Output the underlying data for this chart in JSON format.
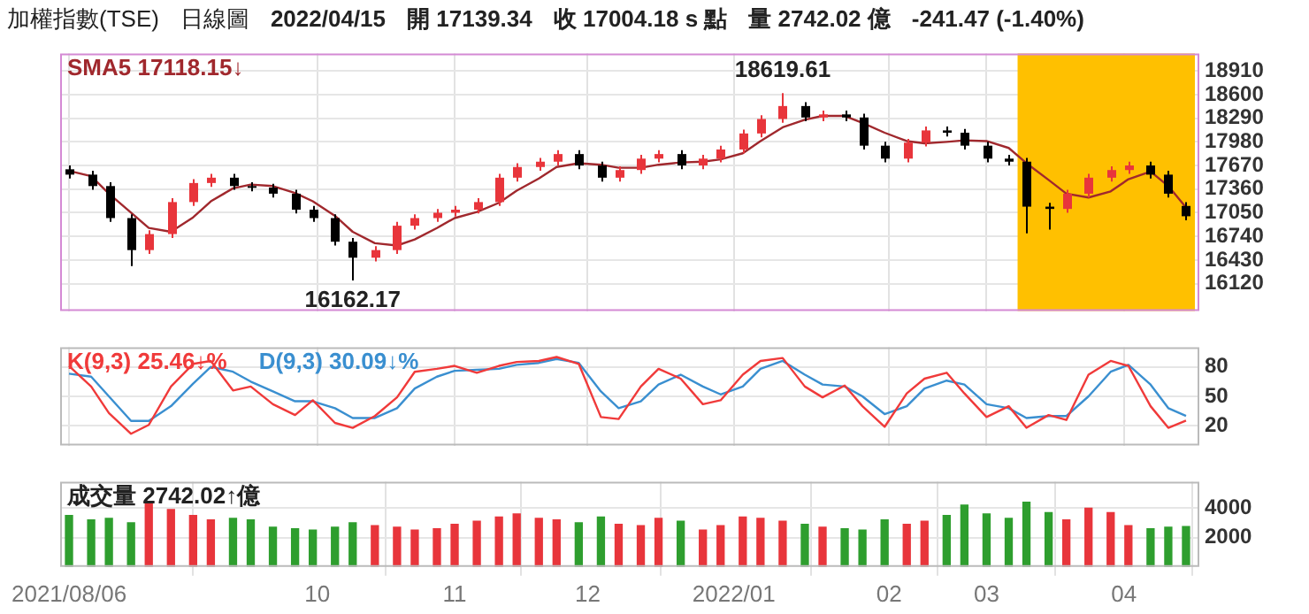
{
  "chart_data": [
    {
      "type": "candlestick",
      "title": "加權指數(TSE)",
      "subtitle": "日線圖",
      "annotations": [
        "2022/04/15",
        "開 17139.34",
        "收 17004.18 s 點",
        "量 2742.02 億",
        "-241.47 (-1.40%)",
        {
          "text": "18619.61",
          "x": "2022-01-14",
          "y": 18619.61
        },
        {
          "text": "16162.17",
          "x": "2021-10-09",
          "y": 16162.17
        }
      ],
      "x": [
        "2021-08-06",
        "2021-08-11",
        "2021-08-15",
        "2021-08-20",
        "2021-08-24",
        "2021-08-29",
        "2021-09-03",
        "2021-09-07",
        "2021-09-12",
        "2021-09-16",
        "2021-09-21",
        "2021-09-26",
        "2021-09-30",
        "2021-10-05",
        "2021-10-09",
        "2021-10-14",
        "2021-10-19",
        "2021-10-23",
        "2021-10-28",
        "2021-11-01",
        "2021-11-06",
        "2021-11-11",
        "2021-11-15",
        "2021-11-20",
        "2021-11-24",
        "2021-11-29",
        "2021-12-04",
        "2021-12-08",
        "2021-12-13",
        "2021-12-17",
        "2021-12-22",
        "2021-12-27",
        "2021-12-31",
        "2022-01-05",
        "2022-01-09",
        "2022-01-14",
        "2022-01-19",
        "2022-01-23",
        "2022-01-28",
        "2022-02-01",
        "2022-02-06",
        "2022-02-11",
        "2022-02-15",
        "2022-02-20",
        "2022-02-24",
        "2022-03-01",
        "2022-03-06",
        "2022-03-10",
        "2022-03-15",
        "2022-03-19",
        "2022-03-24",
        "2022-03-29",
        "2022-04-02",
        "2022-04-07",
        "2022-04-11",
        "2022-04-15"
      ],
      "xlim": [
        "2021-08-04",
        "2022-04-18"
      ],
      "xticks": [
        "2021-08-06",
        "2021-10-01",
        "2021-11-01",
        "2021-12-01",
        "2022-01-03",
        "2022-02-07",
        "2022-03-01",
        "2022-04-01"
      ],
      "ylim": [
        15760,
        19140
      ],
      "yticks": [
        16120,
        16430,
        16740,
        17050,
        17360,
        17670,
        17980,
        18290,
        18600,
        18910
      ],
      "grid": true,
      "tick_labels": "y",
      "legend": "top left",
      "bands": [
        {
          "axis": "x",
          "from": "2022-03-08",
          "to": "2022-04-17",
          "color": "#ffc000"
        }
      ],
      "series": [
        {
          "type": "candlestick",
          "ohlc": [
            [
              17620,
              17670,
              17500,
              17550
            ],
            [
              17550,
              17600,
              17350,
              17400
            ],
            [
              17400,
              17450,
              16930,
              16980
            ],
            [
              16980,
              17030,
              16350,
              16560
            ],
            [
              16560,
              16820,
              16510,
              16770
            ],
            [
              16770,
              17240,
              16720,
              17190
            ],
            [
              17190,
              17490,
              17140,
              17440
            ],
            [
              17440,
              17560,
              17390,
              17510
            ],
            [
              17510,
              17560,
              17350,
              17400
            ],
            [
              17400,
              17450,
              17330,
              17380
            ],
            [
              17380,
              17430,
              17250,
              17300
            ],
            [
              17300,
              17350,
              17040,
              17090
            ],
            [
              17090,
              17140,
              16930,
              16980
            ],
            [
              16980,
              17030,
              16620,
              16670
            ],
            [
              16670,
              16720,
              16162.17,
              16460
            ],
            [
              16460,
              16610,
              16410,
              16560
            ],
            [
              16560,
              16930,
              16510,
              16880
            ],
            [
              16880,
              17030,
              16830,
              16980
            ],
            [
              16980,
              17100,
              16930,
              17050
            ],
            [
              17050,
              17140,
              17000,
              17090
            ],
            [
              17090,
              17240,
              17040,
              17190
            ],
            [
              17190,
              17560,
              17140,
              17510
            ],
            [
              17510,
              17700,
              17460,
              17650
            ],
            [
              17650,
              17770,
              17600,
              17720
            ],
            [
              17720,
              17870,
              17670,
              17820
            ],
            [
              17820,
              17870,
              17620,
              17670
            ],
            [
              17670,
              17720,
              17460,
              17510
            ],
            [
              17510,
              17660,
              17460,
              17610
            ],
            [
              17610,
              17810,
              17560,
              17760
            ],
            [
              17760,
              17870,
              17710,
              17820
            ],
            [
              17820,
              17870,
              17620,
              17670
            ],
            [
              17670,
              17810,
              17620,
              17760
            ],
            [
              17760,
              17930,
              17710,
              17880
            ],
            [
              17880,
              18140,
              17830,
              18090
            ],
            [
              18090,
              18330,
              18040,
              18280
            ],
            [
              18280,
              18619.61,
              18230,
              18450
            ],
            [
              18450,
              18500,
              18250,
              18300
            ],
            [
              18300,
              18390,
              18250,
              18340
            ],
            [
              18340,
              18390,
              18250,
              18300
            ],
            [
              18300,
              18350,
              17880,
              17930
            ],
            [
              17930,
              17980,
              17710,
              17760
            ],
            [
              17760,
              18020,
              17710,
              17970
            ],
            [
              17970,
              18180,
              17920,
              18130
            ],
            [
              18130,
              18180,
              18050,
              18100
            ],
            [
              18100,
              18150,
              17880,
              17930
            ],
            [
              17930,
              17980,
              17710,
              17760
            ],
            [
              17760,
              17810,
              17670,
              17720
            ],
            [
              17720,
              17770,
              16780,
              17130
            ],
            [
              17130,
              17180,
              16830,
              17100
            ],
            [
              17100,
              17350,
              17050,
              17300
            ],
            [
              17300,
              17560,
              17250,
              17510
            ],
            [
              17510,
              17660,
              17460,
              17610
            ],
            [
              17610,
              17720,
              17560,
              17670
            ],
            [
              17670,
              17720,
              17500,
              17550
            ],
            [
              17550,
              17600,
              17250,
              17300
            ],
            [
              17139.34,
              17190,
              16950,
              17004.18
            ]
          ],
          "colors": [
            "#000000",
            "#000000",
            "#000000",
            "#000000",
            "#e8353b",
            "#e8353b",
            "#e8353b",
            "#e8353b",
            "#000000",
            "#000000",
            "#000000",
            "#000000",
            "#000000",
            "#000000",
            "#000000",
            "#e8353b",
            "#e8353b",
            "#e8353b",
            "#e8353b",
            "#e8353b",
            "#e8353b",
            "#e8353b",
            "#e8353b",
            "#e8353b",
            "#e8353b",
            "#000000",
            "#000000",
            "#e8353b",
            "#e8353b",
            "#e8353b",
            "#000000",
            "#e8353b",
            "#e8353b",
            "#e8353b",
            "#e8353b",
            "#e8353b",
            "#000000",
            "#e8353b",
            "#000000",
            "#000000",
            "#000000",
            "#e8353b",
            "#e8353b",
            "#000000",
            "#000000",
            "#000000",
            "#000000",
            "#000000",
            "#000000",
            "#e8353b",
            "#e8353b",
            "#e8353b",
            "#e8353b",
            "#000000",
            "#000000",
            "#000000"
          ]
        },
        {
          "type": "line",
          "name": "SMA5 17118.15↓",
          "color": "#a0282d",
          "values": [
            17600,
            17530,
            17300,
            17050,
            16850,
            16800,
            16990,
            17200,
            17370,
            17420,
            17400,
            17310,
            17200,
            17010,
            16800,
            16650,
            16620,
            16700,
            16850,
            16980,
            17060,
            17180,
            17340,
            17500,
            17650,
            17700,
            17680,
            17640,
            17640,
            17680,
            17710,
            17720,
            17750,
            17830,
            17990,
            18170,
            18270,
            18320,
            18320,
            18230,
            18100,
            17990,
            17960,
            17980,
            18000,
            17990,
            17900,
            17700,
            17480,
            17300,
            17250,
            17330,
            17490,
            17590,
            17400,
            17118.15
          ]
        }
      ]
    },
    {
      "type": "line",
      "x": [
        "2021-08-06",
        "2021-08-11",
        "2021-08-15",
        "2021-08-20",
        "2021-08-24",
        "2021-08-29",
        "2021-09-03",
        "2021-09-07",
        "2021-09-12",
        "2021-09-16",
        "2021-09-21",
        "2021-09-26",
        "2021-09-30",
        "2021-10-05",
        "2021-10-09",
        "2021-10-14",
        "2021-10-19",
        "2021-10-23",
        "2021-10-28",
        "2021-11-01",
        "2021-11-06",
        "2021-11-11",
        "2021-11-15",
        "2021-11-20",
        "2021-11-24",
        "2021-11-29",
        "2021-12-04",
        "2021-12-08",
        "2021-12-13",
        "2021-12-17",
        "2021-12-22",
        "2021-12-27",
        "2021-12-31",
        "2022-01-05",
        "2022-01-09",
        "2022-01-14",
        "2022-01-19",
        "2022-01-23",
        "2022-01-28",
        "2022-02-01",
        "2022-02-06",
        "2022-02-11",
        "2022-02-15",
        "2022-02-20",
        "2022-02-24",
        "2022-03-01",
        "2022-03-06",
        "2022-03-10",
        "2022-03-15",
        "2022-03-19",
        "2022-03-24",
        "2022-03-29",
        "2022-04-02",
        "2022-04-07",
        "2022-04-11",
        "2022-04-15"
      ],
      "xlim": [
        "2021-08-04",
        "2022-04-18"
      ],
      "xticks": [
        "2021-08-06",
        "2021-10-01",
        "2021-11-01",
        "2021-12-01",
        "2022-01-03",
        "2022-02-07",
        "2022-03-01",
        "2022-04-01"
      ],
      "ylim": [
        0,
        100
      ],
      "yticks": [
        20,
        50,
        80
      ],
      "grid": true,
      "tick_labels": "y",
      "legend": "top left",
      "series": [
        {
          "name": "K(9,3) 25.46↓%",
          "color": "#f03a3a",
          "values": [
            81,
            60,
            33,
            12,
            21,
            60,
            83,
            86,
            56,
            60,
            42,
            31,
            46,
            23,
            18,
            30,
            49,
            75,
            78,
            81,
            74,
            81,
            85,
            86,
            90,
            83,
            29,
            27,
            60,
            78,
            68,
            42,
            46,
            72,
            86,
            89,
            60,
            49,
            61,
            40,
            19,
            53,
            68,
            74,
            53,
            29,
            40,
            18,
            31,
            26,
            72,
            86,
            81,
            40,
            18,
            25.46
          ]
        },
        {
          "name": "D(9,3) 30.09↓%",
          "color": "#3a8fd0",
          "values": [
            73,
            70,
            50,
            25,
            25,
            40,
            63,
            80,
            75,
            65,
            55,
            45,
            45,
            38,
            28,
            28,
            38,
            58,
            70,
            76,
            77,
            78,
            82,
            84,
            88,
            84,
            55,
            38,
            45,
            62,
            72,
            60,
            52,
            60,
            78,
            86,
            72,
            62,
            60,
            50,
            32,
            40,
            58,
            66,
            62,
            42,
            38,
            28,
            30,
            30,
            50,
            75,
            82,
            62,
            38,
            30.09
          ]
        }
      ]
    },
    {
      "type": "bar",
      "title": "成交量 2742.02↑億",
      "x": [
        "2021-08-06",
        "2021-08-11",
        "2021-08-15",
        "2021-08-20",
        "2021-08-24",
        "2021-08-29",
        "2021-09-03",
        "2021-09-07",
        "2021-09-12",
        "2021-09-16",
        "2021-09-21",
        "2021-09-26",
        "2021-09-30",
        "2021-10-05",
        "2021-10-09",
        "2021-10-14",
        "2021-10-19",
        "2021-10-23",
        "2021-10-28",
        "2021-11-01",
        "2021-11-06",
        "2021-11-11",
        "2021-11-15",
        "2021-11-20",
        "2021-11-24",
        "2021-11-29",
        "2021-12-04",
        "2021-12-08",
        "2021-12-13",
        "2021-12-17",
        "2021-12-22",
        "2021-12-27",
        "2021-12-31",
        "2022-01-05",
        "2022-01-09",
        "2022-01-14",
        "2022-01-19",
        "2022-01-23",
        "2022-01-28",
        "2022-02-01",
        "2022-02-06",
        "2022-02-11",
        "2022-02-15",
        "2022-02-20",
        "2022-02-24",
        "2022-03-01",
        "2022-03-06",
        "2022-03-10",
        "2022-03-15",
        "2022-03-19",
        "2022-03-24",
        "2022-03-29",
        "2022-04-02",
        "2022-04-07",
        "2022-04-11",
        "2022-04-15"
      ],
      "xlim": [
        "2021-08-04",
        "2022-04-18"
      ],
      "xticks": [
        {
          "value": "2021-08-06",
          "label": "2021/08/06"
        },
        {
          "value": "2021-10-01",
          "label": "10"
        },
        {
          "value": "2021-11-01",
          "label": "11"
        },
        {
          "value": "2021-12-01",
          "label": "12"
        },
        {
          "value": "2022-01-03",
          "label": "2022/01"
        },
        {
          "value": "2022-02-07",
          "label": "02"
        },
        {
          "value": "2022-03-01",
          "label": "03"
        },
        {
          "value": "2022-04-01",
          "label": "04"
        }
      ],
      "ylim": [
        0,
        5800
      ],
      "yticks": [
        2000,
        4000
      ],
      "grid": true,
      "values": [
        3500,
        3200,
        3300,
        3000,
        4300,
        3900,
        3500,
        3200,
        3300,
        3200,
        2700,
        2600,
        2500,
        2700,
        3000,
        2800,
        2700,
        2500,
        2600,
        2900,
        3100,
        3400,
        3600,
        3300,
        3200,
        3000,
        3400,
        2900,
        2800,
        3300,
        3100,
        2500,
        2800,
        3400,
        3300,
        3100,
        2900,
        2700,
        2600,
        2500,
        3200,
        2900,
        3100,
        3500,
        4200,
        3600,
        3300,
        4400,
        3700,
        3200,
        4000,
        3700,
        2800,
        2600,
        2700,
        2742.02
      ],
      "colors": [
        "#2e9e2e",
        "#2e9e2e",
        "#2e9e2e",
        "#2e9e2e",
        "#e8353b",
        "#e8353b",
        "#e8353b",
        "#e8353b",
        "#2e9e2e",
        "#2e9e2e",
        "#2e9e2e",
        "#2e9e2e",
        "#2e9e2e",
        "#2e9e2e",
        "#2e9e2e",
        "#e8353b",
        "#e8353b",
        "#e8353b",
        "#e8353b",
        "#e8353b",
        "#e8353b",
        "#e8353b",
        "#e8353b",
        "#e8353b",
        "#e8353b",
        "#2e9e2e",
        "#2e9e2e",
        "#e8353b",
        "#e8353b",
        "#e8353b",
        "#2e9e2e",
        "#e8353b",
        "#e8353b",
        "#e8353b",
        "#e8353b",
        "#e8353b",
        "#2e9e2e",
        "#e8353b",
        "#2e9e2e",
        "#2e9e2e",
        "#2e9e2e",
        "#e8353b",
        "#e8353b",
        "#2e9e2e",
        "#2e9e2e",
        "#2e9e2e",
        "#2e9e2e",
        "#2e9e2e",
        "#2e9e2e",
        "#e8353b",
        "#e8353b",
        "#e8353b",
        "#e8353b",
        "#2e9e2e",
        "#2e9e2e",
        "#2e9e2e"
      ]
    }
  ]
}
